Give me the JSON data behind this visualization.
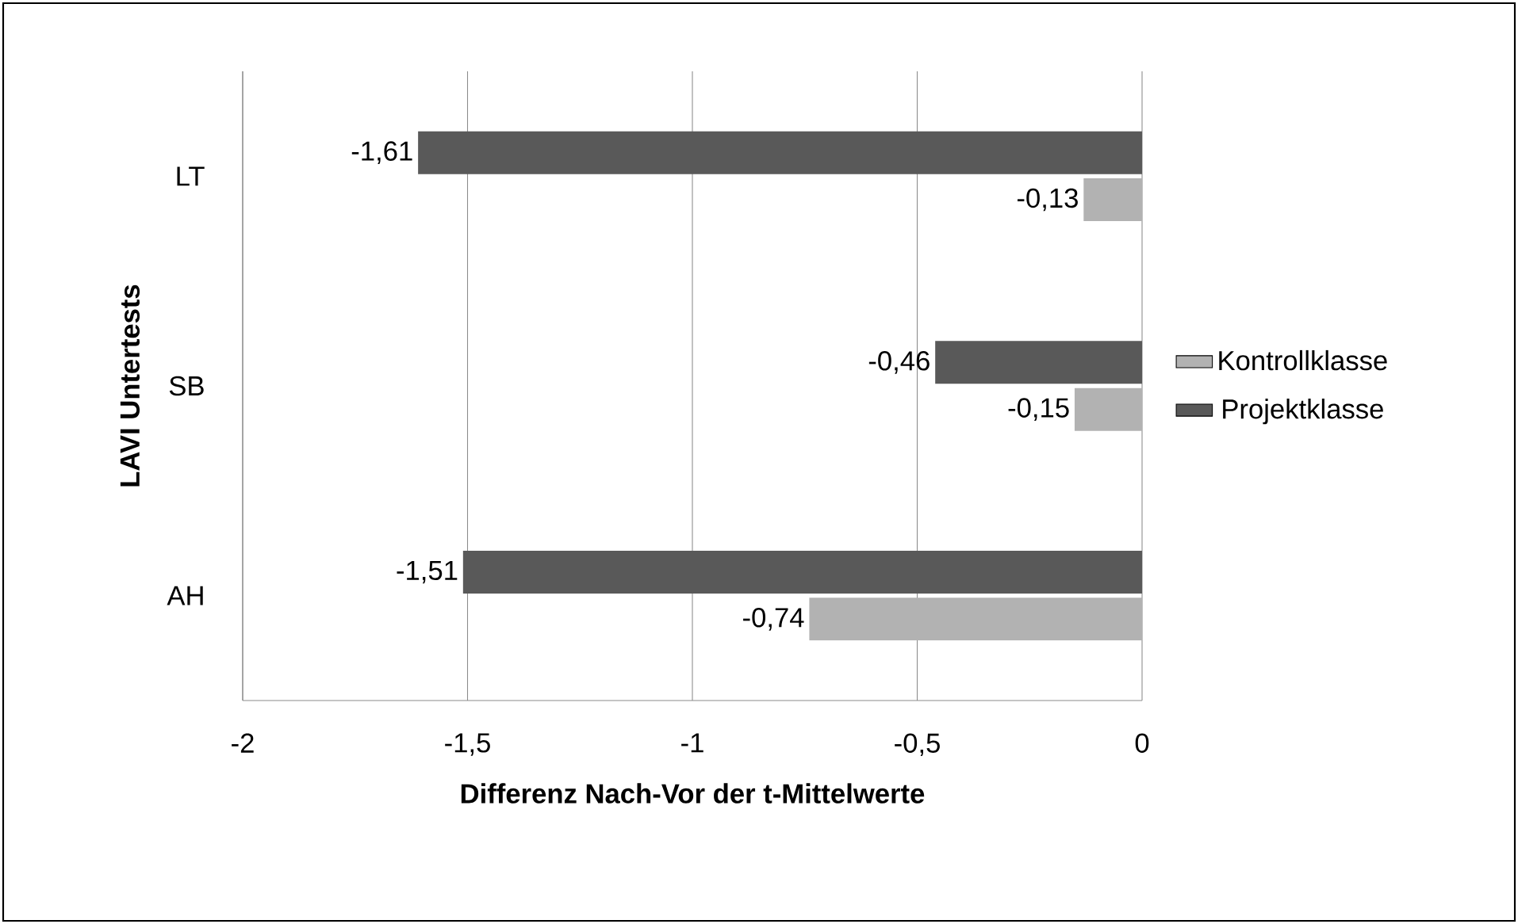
{
  "chart_data": {
    "type": "bar",
    "orientation": "horizontal",
    "xlabel": "Differenz Nach-Vor der t-Mittelwerte",
    "ylabel": "LAVI Untertests",
    "categories": [
      "LT",
      "SB",
      "AH"
    ],
    "series": [
      {
        "name": "Kontrollklasse",
        "color": "#b2b2b2",
        "values": [
          -0.13,
          -0.15,
          -0.74
        ],
        "value_labels": [
          "-0,13",
          "-0,15",
          "-0,74"
        ]
      },
      {
        "name": "Projektklasse",
        "color": "#595959",
        "values": [
          -1.61,
          -0.46,
          -1.51
        ],
        "value_labels": [
          "-1,61",
          "-0,46",
          "-1,51"
        ]
      }
    ],
    "xlim": [
      -2,
      0
    ],
    "xticks": [
      -2,
      {
        "value": -1.5,
        "label": "-1,5"
      },
      -1,
      {
        "value": -0.5,
        "label": "-0,5"
      },
      0
    ],
    "grid": "x",
    "legend": "right"
  }
}
